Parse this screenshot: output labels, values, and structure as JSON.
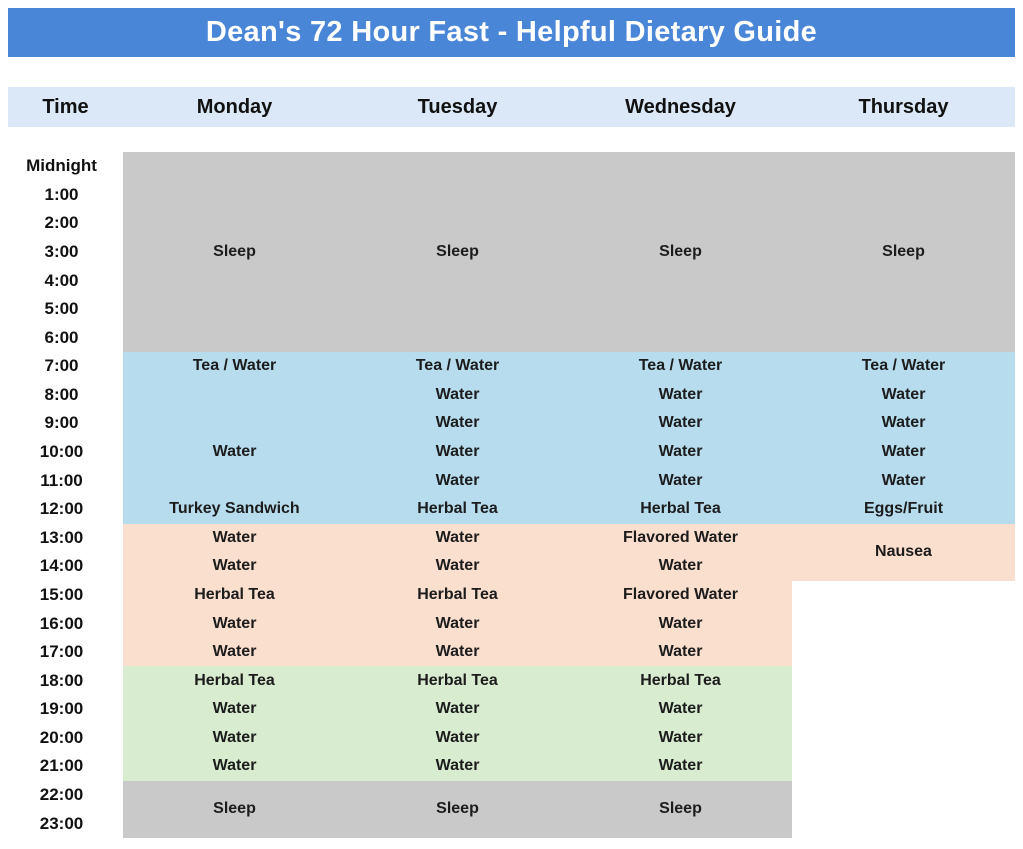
{
  "page_title": "Dean's 72 Hour Fast - Helpful Dietary Guide",
  "colors": {
    "title_bar": "#4a86d8",
    "title_text": "#ffffff",
    "header_row": "#dbe8f7",
    "header_text": "#111111",
    "cell_text": "#1c1c1c"
  },
  "bands": {
    "sleep": "#c9c9c9",
    "fast_morning": "#b7dcee",
    "fast_afternoon": "#fadece",
    "fast_evening": "#d8edd0"
  },
  "columns": [
    "Time",
    "Monday",
    "Tuesday",
    "Wednesday",
    "Thursday"
  ],
  "times": [
    "Midnight",
    "1:00",
    "2:00",
    "3:00",
    "4:00",
    "5:00",
    "6:00",
    "7:00",
    "8:00",
    "9:00",
    "10:00",
    "11:00",
    "12:00",
    "13:00",
    "14:00",
    "15:00",
    "16:00",
    "17:00",
    "18:00",
    "19:00",
    "20:00",
    "21:00",
    "22:00",
    "23:00"
  ],
  "days": [
    {
      "name": "Monday",
      "cells": [
        {
          "rows": [
            0,
            6
          ],
          "text": "Sleep",
          "band": "sleep"
        },
        {
          "row": 7,
          "text": "Tea / Water",
          "band": "fast_morning"
        },
        {
          "row": 8,
          "text": "",
          "band": "fast_morning"
        },
        {
          "row": 9,
          "text": "",
          "band": "fast_morning"
        },
        {
          "row": 10,
          "text": "Water",
          "band": "fast_morning"
        },
        {
          "row": 11,
          "text": "",
          "band": "fast_morning"
        },
        {
          "row": 12,
          "text": "Turkey Sandwich",
          "band": "fast_morning"
        },
        {
          "row": 13,
          "text": "Water",
          "band": "fast_afternoon"
        },
        {
          "row": 14,
          "text": "Water",
          "band": "fast_afternoon"
        },
        {
          "row": 15,
          "text": "Herbal Tea",
          "band": "fast_afternoon"
        },
        {
          "row": 16,
          "text": "Water",
          "band": "fast_afternoon"
        },
        {
          "row": 17,
          "text": "Water",
          "band": "fast_afternoon"
        },
        {
          "row": 18,
          "text": "Herbal Tea",
          "band": "fast_evening"
        },
        {
          "row": 19,
          "text": "Water",
          "band": "fast_evening"
        },
        {
          "row": 20,
          "text": "Water",
          "band": "fast_evening"
        },
        {
          "row": 21,
          "text": "Water",
          "band": "fast_evening"
        },
        {
          "rows": [
            22,
            23
          ],
          "text": "Sleep",
          "band": "sleep"
        }
      ]
    },
    {
      "name": "Tuesday",
      "cells": [
        {
          "rows": [
            0,
            6
          ],
          "text": "Sleep",
          "band": "sleep"
        },
        {
          "row": 7,
          "text": "Tea / Water",
          "band": "fast_morning"
        },
        {
          "row": 8,
          "text": "Water",
          "band": "fast_morning"
        },
        {
          "row": 9,
          "text": "Water",
          "band": "fast_morning"
        },
        {
          "row": 10,
          "text": "Water",
          "band": "fast_morning"
        },
        {
          "row": 11,
          "text": "Water",
          "band": "fast_morning"
        },
        {
          "row": 12,
          "text": "Herbal Tea",
          "band": "fast_morning"
        },
        {
          "row": 13,
          "text": "Water",
          "band": "fast_afternoon"
        },
        {
          "row": 14,
          "text": "Water",
          "band": "fast_afternoon"
        },
        {
          "row": 15,
          "text": "Herbal Tea",
          "band": "fast_afternoon"
        },
        {
          "row": 16,
          "text": "Water",
          "band": "fast_afternoon"
        },
        {
          "row": 17,
          "text": "Water",
          "band": "fast_afternoon"
        },
        {
          "row": 18,
          "text": "Herbal Tea",
          "band": "fast_evening"
        },
        {
          "row": 19,
          "text": "Water",
          "band": "fast_evening"
        },
        {
          "row": 20,
          "text": "Water",
          "band": "fast_evening"
        },
        {
          "row": 21,
          "text": "Water",
          "band": "fast_evening"
        },
        {
          "rows": [
            22,
            23
          ],
          "text": "Sleep",
          "band": "sleep"
        }
      ]
    },
    {
      "name": "Wednesday",
      "cells": [
        {
          "rows": [
            0,
            6
          ],
          "text": "Sleep",
          "band": "sleep"
        },
        {
          "row": 7,
          "text": "Tea / Water",
          "band": "fast_morning"
        },
        {
          "row": 8,
          "text": "Water",
          "band": "fast_morning"
        },
        {
          "row": 9,
          "text": "Water",
          "band": "fast_morning"
        },
        {
          "row": 10,
          "text": "Water",
          "band": "fast_morning"
        },
        {
          "row": 11,
          "text": "Water",
          "band": "fast_morning"
        },
        {
          "row": 12,
          "text": "Herbal Tea",
          "band": "fast_morning"
        },
        {
          "row": 13,
          "text": "Flavored Water",
          "band": "fast_afternoon"
        },
        {
          "row": 14,
          "text": "Water",
          "band": "fast_afternoon"
        },
        {
          "row": 15,
          "text": "Flavored Water",
          "band": "fast_afternoon"
        },
        {
          "row": 16,
          "text": "Water",
          "band": "fast_afternoon"
        },
        {
          "row": 17,
          "text": "Water",
          "band": "fast_afternoon"
        },
        {
          "row": 18,
          "text": "Herbal Tea",
          "band": "fast_evening"
        },
        {
          "row": 19,
          "text": "Water",
          "band": "fast_evening"
        },
        {
          "row": 20,
          "text": "Water",
          "band": "fast_evening"
        },
        {
          "row": 21,
          "text": "Water",
          "band": "fast_evening"
        },
        {
          "rows": [
            22,
            23
          ],
          "text": "Sleep",
          "band": "sleep"
        }
      ]
    },
    {
      "name": "Thursday",
      "cells": [
        {
          "rows": [
            0,
            6
          ],
          "text": "Sleep",
          "band": "sleep"
        },
        {
          "row": 7,
          "text": "Tea / Water",
          "band": "fast_morning"
        },
        {
          "row": 8,
          "text": "Water",
          "band": "fast_morning"
        },
        {
          "row": 9,
          "text": "Water",
          "band": "fast_morning"
        },
        {
          "row": 10,
          "text": "Water",
          "band": "fast_morning"
        },
        {
          "row": 11,
          "text": "Water",
          "band": "fast_morning"
        },
        {
          "row": 12,
          "text": "Eggs/Fruit",
          "band": "fast_morning"
        },
        {
          "rows": [
            13,
            14
          ],
          "text": "Nausea",
          "band": "fast_afternoon"
        }
      ]
    }
  ]
}
